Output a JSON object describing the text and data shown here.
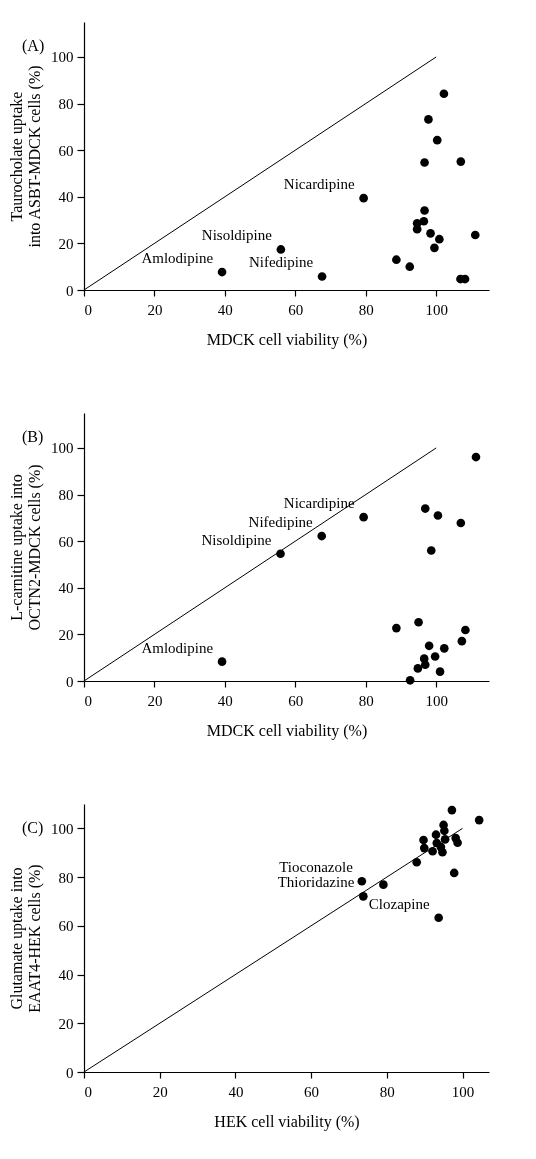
{
  "chart_data": [
    {
      "type": "scatter",
      "title": "(A)",
      "xlabel": "MDCK cell viability (%)",
      "ylabel": "Taurocholate uptake into ASBT-MDCK cells (%)",
      "xlim": [
        0,
        115
      ],
      "xticks": [
        0,
        20,
        40,
        60,
        80,
        100
      ],
      "ylim": [
        0,
        115
      ],
      "yticks": [
        0,
        20,
        40,
        60,
        80,
        100
      ],
      "marker": "circle",
      "series": [
        {
          "type": "line",
          "marker": "none",
          "color": "#000000",
          "x": [
            0,
            100
          ],
          "values": [
            0,
            100
          ]
        },
        {
          "color": "#000000",
          "x": [
            39.2,
            55.9,
            67.6,
            79.4,
            88.7,
            92.5,
            94.6,
            94.6,
            96.7,
            96.5,
            96.7,
            97.8,
            98.4,
            99.5,
            100.3,
            100.9,
            102.2,
            107.0,
            106.9,
            108.2,
            111.1
          ],
          "values": [
            7.7,
            17.4,
            5.8,
            39.4,
            13.0,
            10.0,
            28.6,
            26.1,
            34.1,
            29.5,
            54.7,
            73.2,
            24.3,
            18.1,
            64.3,
            21.8,
            84.2,
            55.1,
            4.7,
            4.7,
            23.6
          ]
        }
      ],
      "annotations": [
        {
          "text": "Amlodipine",
          "x": 39.2,
          "y": 7.7
        },
        {
          "text": "Nisoldipine",
          "x": 55.9,
          "y": 17.4
        },
        {
          "text": "Nicardipine",
          "x": 79.4,
          "y": 39.4
        },
        {
          "text": "Nifedipine",
          "x": 67.6,
          "y": 5.8
        }
      ]
    },
    {
      "type": "scatter",
      "title": "(B)",
      "xlabel": "MDCK cell viability (%)",
      "ylabel": "L-carnitine uptake into OCTN2-MDCK cells (%)",
      "xlim": [
        0,
        115
      ],
      "xticks": [
        0,
        20,
        40,
        60,
        80,
        100
      ],
      "ylim": [
        0,
        115
      ],
      "yticks": [
        0,
        20,
        40,
        60,
        80,
        100
      ],
      "marker": "circle",
      "series": [
        {
          "type": "line",
          "marker": "none",
          "color": "#000000",
          "x": [
            0,
            100
          ],
          "values": [
            0,
            100
          ]
        },
        {
          "color": "#000000",
          "x": [
            39.2,
            55.8,
            67.5,
            79.4,
            88.7,
            92.6,
            94.8,
            95.0,
            96.6,
            96.9,
            96.9,
            98.0,
            98.6,
            99.7,
            100.5,
            101.1,
            102.3,
            107.0,
            107.3,
            108.3,
            111.3
          ],
          "values": [
            8.3,
            54.6,
            62.2,
            70.3,
            22.7,
            0.3,
            5.4,
            25.2,
            9.6,
            7.0,
            74.0,
            15.1,
            56.0,
            10.5,
            71.0,
            4.0,
            14.0,
            67.8,
            17.1,
            21.9,
            96.1
          ]
        }
      ],
      "annotations": [
        {
          "text": "Nicardipine",
          "x": 79.4,
          "y": 70.3
        },
        {
          "text": "Nifedipine",
          "x": 67.5,
          "y": 62.2
        },
        {
          "text": "Nisoldipine",
          "x": 55.8,
          "y": 54.6
        },
        {
          "text": "Amlodipine",
          "x": 39.2,
          "y": 8.3
        }
      ]
    },
    {
      "type": "scatter",
      "title": "(C)",
      "xlabel": "HEK cell viability (%)",
      "ylabel": "Glutamate uptake into EAAT4-HEK cells (%)",
      "xlim": [
        0,
        107
      ],
      "xticks": [
        0,
        20,
        40,
        60,
        80,
        100
      ],
      "ylim": [
        0,
        110
      ],
      "yticks": [
        0,
        20,
        40,
        60,
        80,
        100
      ],
      "marker": "circle",
      "series": [
        {
          "type": "line",
          "marker": "none",
          "color": "#000000",
          "x": [
            0,
            100
          ],
          "values": [
            0,
            100
          ]
        },
        {
          "color": "#000000",
          "x": [
            73.4,
            73.8,
            79.1,
            87.9,
            89.7,
            89.9,
            92.1,
            93.0,
            93.2,
            93.7,
            94.3,
            94.7,
            95.0,
            95.2,
            95.4,
            97.2,
            97.8,
            98.2,
            98.7,
            104.4
          ],
          "values": [
            78.3,
            72.1,
            76.9,
            86.1,
            95.2,
            91.9,
            90.6,
            97.4,
            94.0,
            63.3,
            92.3,
            90.2,
            101.4,
            99.0,
            95.5,
            107.5,
            81.7,
            96.0,
            94.1,
            103.4
          ]
        }
      ],
      "annotations": [
        {
          "text": "Tioconazole",
          "x": 73.4,
          "y": 78.3
        },
        {
          "text": "Thioridazine",
          "x": 73.8,
          "y": 72.1
        },
        {
          "text": "Clozapine",
          "x": 93.7,
          "y": 63.3
        }
      ]
    }
  ]
}
